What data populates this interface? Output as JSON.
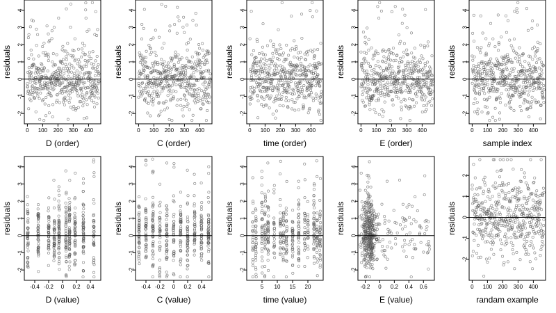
{
  "chart_data": [
    {
      "type": "scatter",
      "xlabel": "D (order)",
      "ylabel": "residuals",
      "xlim": [
        -20,
        480
      ],
      "ylim": [
        -2.6,
        4.6
      ],
      "xticks": [
        0,
        100,
        200,
        300,
        400
      ],
      "yticks": [
        -2,
        -1,
        0,
        1,
        2,
        3,
        4
      ],
      "hline": 0,
      "n": 470,
      "pattern": "order",
      "seed": 11
    },
    {
      "type": "scatter",
      "xlabel": "C (order)",
      "ylabel": "residuals",
      "xlim": [
        -20,
        480
      ],
      "ylim": [
        -2.6,
        4.6
      ],
      "xticks": [
        0,
        100,
        200,
        300,
        400
      ],
      "yticks": [
        -2,
        -1,
        0,
        1,
        2,
        3,
        4
      ],
      "hline": 0,
      "n": 470,
      "pattern": "order",
      "seed": 23
    },
    {
      "type": "scatter",
      "xlabel": "time (order)",
      "ylabel": "residuals",
      "xlim": [
        -20,
        480
      ],
      "ylim": [
        -2.6,
        4.6
      ],
      "xticks": [
        0,
        100,
        200,
        300,
        400
      ],
      "yticks": [
        -2,
        -1,
        0,
        1,
        2,
        3,
        4
      ],
      "hline": 0,
      "n": 470,
      "pattern": "order",
      "seed": 37
    },
    {
      "type": "scatter",
      "xlabel": "E (order)",
      "ylabel": "residuals",
      "xlim": [
        -20,
        480
      ],
      "ylim": [
        -2.6,
        4.6
      ],
      "xticks": [
        0,
        100,
        200,
        300,
        400
      ],
      "yticks": [
        -2,
        -1,
        0,
        1,
        2,
        3,
        4
      ],
      "hline": 0,
      "n": 470,
      "pattern": "order",
      "seed": 41
    },
    {
      "type": "scatter",
      "xlabel": "sample index",
      "ylabel": "residuals",
      "xlim": [
        -20,
        480
      ],
      "ylim": [
        -2.6,
        4.6
      ],
      "xticks": [
        0,
        100,
        200,
        300,
        400
      ],
      "yticks": [
        -2,
        -1,
        0,
        1,
        2,
        3,
        4
      ],
      "hline": 0,
      "n": 470,
      "pattern": "order",
      "seed": 53
    },
    {
      "type": "scatter",
      "xlabel": "D (value)",
      "ylabel": "residuals",
      "xlim": [
        -0.55,
        0.55
      ],
      "ylim": [
        -2.6,
        4.6
      ],
      "xticks": [
        -0.4,
        -0.2,
        0.0,
        0.2,
        0.4
      ],
      "yticks": [
        -2,
        -1,
        0,
        1,
        2,
        3,
        4
      ],
      "hline": 0,
      "n": 470,
      "pattern": "value",
      "value_levels": [
        -0.5,
        -0.35,
        -0.2,
        -0.12,
        -0.05,
        0.05,
        0.1,
        0.18,
        0.3,
        0.45
      ],
      "seed": 61
    },
    {
      "type": "scatter",
      "xlabel": "C (value)",
      "ylabel": "residuals",
      "xlim": [
        -0.55,
        0.55
      ],
      "ylim": [
        -2.6,
        4.6
      ],
      "xticks": [
        -0.4,
        -0.2,
        0.0,
        0.2,
        0.4
      ],
      "yticks": [
        -2,
        -1,
        0,
        1,
        2,
        3,
        4
      ],
      "hline": 0,
      "n": 470,
      "pattern": "value",
      "value_levels": [
        -0.5,
        -0.4,
        -0.3,
        -0.2,
        -0.1,
        0.0,
        0.1,
        0.2,
        0.3,
        0.4,
        0.5
      ],
      "seed": 67
    },
    {
      "type": "scatter",
      "xlabel": "time (value)",
      "ylabel": "residuals",
      "xlim": [
        0,
        25
      ],
      "ylim": [
        -2.6,
        4.6
      ],
      "xticks": [
        5,
        10,
        15,
        20
      ],
      "yticks": [
        -2,
        -1,
        0,
        1,
        2,
        3,
        4
      ],
      "hline": 0,
      "n": 470,
      "pattern": "value",
      "value_levels": [
        2,
        3,
        5,
        6,
        7,
        9,
        11,
        12,
        13,
        15,
        17,
        19,
        20,
        22,
        23,
        24
      ],
      "seed": 71
    },
    {
      "type": "scatter",
      "xlabel": "E (value)",
      "ylabel": "residuals",
      "xlim": [
        -0.3,
        0.75
      ],
      "ylim": [
        -2.6,
        4.6
      ],
      "xticks": [
        -0.2,
        0.0,
        0.2,
        0.4,
        0.6
      ],
      "yticks": [
        -2,
        -1,
        0,
        1,
        2,
        3,
        4
      ],
      "hline": 0,
      "n": 470,
      "pattern": "skewed",
      "seed": 79
    },
    {
      "type": "scatter",
      "xlabel": "randam example",
      "ylabel": "residuals",
      "xlim": [
        -20,
        480
      ],
      "ylim": [
        -3.0,
        2.9
      ],
      "xticks": [
        0,
        100,
        200,
        300,
        400
      ],
      "yticks": [
        -2,
        -1,
        0,
        1,
        2
      ],
      "hline": 0,
      "n": 470,
      "pattern": "order",
      "seed": 97
    }
  ]
}
